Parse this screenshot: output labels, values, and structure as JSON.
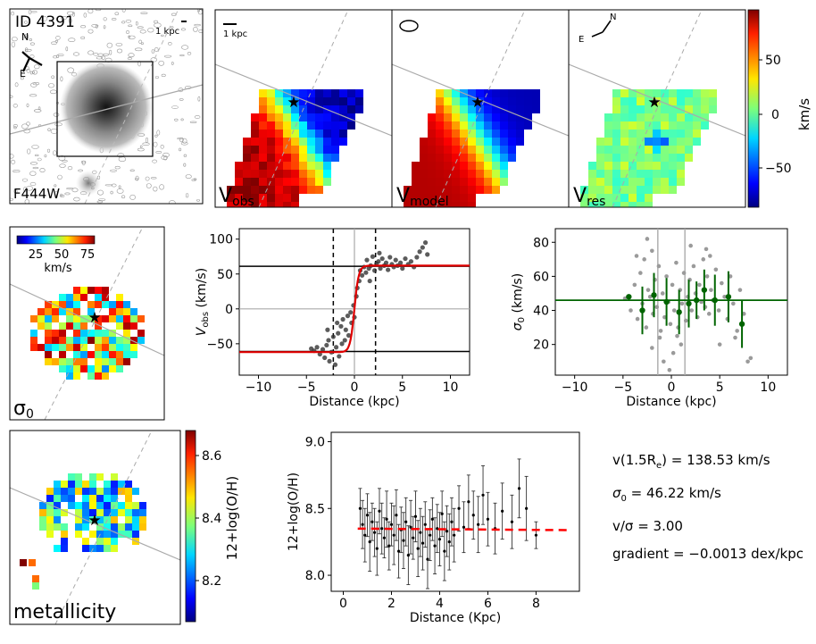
{
  "figure": {
    "id_label": "ID 4391",
    "scale_1kpc": "1 kpc",
    "filter_label": "F444W",
    "compass_n": "N",
    "compass_e": "E",
    "panel_vobs_main": "V",
    "panel_vobs_sub": "obs",
    "panel_vmodel_main": "V",
    "panel_vmodel_sub": "model",
    "panel_vres_main": "V",
    "panel_vres_sub": "res",
    "velocity_colorbar_label": "km/s",
    "velocity_colorbar_ticks": [
      "50",
      "0",
      "−50"
    ],
    "sigma_colorbar_ticks": [
      "25",
      "50",
      "75"
    ],
    "sigma_colorbar_unit": "km/s",
    "sigma_map_label": "σ",
    "sigma_map_sub": "0",
    "metal_map_label": "metallicity",
    "metal_colorbar_label": "12+log(O/H)",
    "metal_colorbar_ticks": [
      "8.6",
      "8.4",
      "8.2"
    ]
  },
  "stats": {
    "vrot": "v(1.5R",
    "vrot_sub": "e",
    "vrot_val": ") = 138.53 km/s",
    "sigma": "σ",
    "sigma_sub": "0",
    "sigma_val": " = 46.22 km/s",
    "vsig": "v/σ = 3.00",
    "gradient": "gradient = −0.0013 dex/kpc"
  },
  "colors": {
    "model_curve": "#e00000",
    "sigma_line": "#006400",
    "metal_fit": "#ff0000",
    "points_dark": "#333333",
    "points_grey": "#9a9a9a"
  },
  "chart_data": [
    {
      "type": "scatter",
      "name": "rotation-curve",
      "xlabel": "Distance (kpc)",
      "ylabel": "V",
      "ylabel_sub": "obs",
      "ylabel_unit": " (km/s)",
      "xlim": [
        -12,
        12
      ],
      "ylim": [
        -95,
        115
      ],
      "xticks": [
        -10,
        -5,
        0,
        5,
        10
      ],
      "yticks": [
        -50,
        0,
        50,
        100
      ],
      "vflat": 61,
      "r_dashed": [
        -2.2,
        2.2
      ],
      "points": [
        [
          -4.5,
          -57
        ],
        [
          -4.2,
          -60
        ],
        [
          -3.9,
          -55
        ],
        [
          -3.6,
          -65
        ],
        [
          -3.3,
          -58
        ],
        [
          -3.1,
          -70
        ],
        [
          -2.9,
          -52
        ],
        [
          -2.7,
          -45
        ],
        [
          -2.6,
          -75
        ],
        [
          -2.4,
          -62
        ],
        [
          -2.2,
          -40
        ],
        [
          -2.0,
          -80
        ],
        [
          -1.9,
          -55
        ],
        [
          -1.7,
          -35
        ],
        [
          -1.6,
          -68
        ],
        [
          -1.4,
          -25
        ],
        [
          -1.3,
          -50
        ],
        [
          -1.2,
          -15
        ],
        [
          -1.0,
          -45
        ],
        [
          -0.9,
          -30
        ],
        [
          -0.7,
          -10
        ],
        [
          -0.6,
          -38
        ],
        [
          -0.4,
          -5
        ],
        [
          -0.3,
          -20
        ],
        [
          -0.1,
          5
        ],
        [
          0.0,
          -12
        ],
        [
          0.2,
          18
        ],
        [
          0.3,
          30
        ],
        [
          0.5,
          40
        ],
        [
          0.6,
          55
        ],
        [
          0.8,
          48
        ],
        [
          1.0,
          60
        ],
        [
          1.2,
          52
        ],
        [
          1.3,
          70
        ],
        [
          1.5,
          58
        ],
        [
          1.7,
          62
        ],
        [
          1.9,
          75
        ],
        [
          2.1,
          55
        ],
        [
          2.3,
          65
        ],
        [
          2.5,
          68
        ],
        [
          2.7,
          58
        ],
        [
          2.9,
          72
        ],
        [
          3.1,
          62
        ],
        [
          3.3,
          66
        ],
        [
          3.5,
          56
        ],
        [
          3.7,
          74
        ],
        [
          3.9,
          64
        ],
        [
          4.1,
          60
        ],
        [
          4.3,
          70
        ],
        [
          4.5,
          62
        ],
        [
          4.8,
          66
        ],
        [
          5.0,
          58
        ],
        [
          5.3,
          72
        ],
        [
          5.6,
          64
        ],
        [
          5.9,
          68
        ],
        [
          6.2,
          60
        ],
        [
          6.5,
          74
        ],
        [
          6.8,
          82
        ],
        [
          7.1,
          88
        ],
        [
          7.4,
          95
        ],
        [
          7.6,
          78
        ],
        [
          -1.8,
          -20
        ],
        [
          -2.8,
          -30
        ],
        [
          1.6,
          40
        ],
        [
          2.6,
          80
        ]
      ],
      "model": {
        "vflat": 62,
        "rt": 0.45
      }
    },
    {
      "type": "scatter",
      "name": "dispersion-profile",
      "xlabel": "Distance (kpc)",
      "ylabel": "σ",
      "ylabel_sub": "0",
      "ylabel_unit": " (km/s)",
      "xlim": [
        -12,
        12
      ],
      "ylim": [
        2,
        88
      ],
      "xticks": [
        -10,
        -5,
        0,
        5,
        10
      ],
      "yticks": [
        20,
        40,
        60,
        80
      ],
      "sigma0": 46,
      "r_vlines": [
        -1.4,
        1.4
      ],
      "binned": [
        [
          -4.4,
          48,
          0
        ],
        [
          -3.0,
          40,
          14
        ],
        [
          -1.8,
          49,
          13
        ],
        [
          -0.5,
          45,
          14
        ],
        [
          0.8,
          39,
          13
        ],
        [
          1.8,
          44,
          14
        ],
        [
          2.6,
          46,
          11
        ],
        [
          3.4,
          52,
          12
        ],
        [
          4.5,
          46,
          15
        ],
        [
          5.9,
          48,
          15
        ],
        [
          7.3,
          32,
          14
        ]
      ],
      "points": [
        [
          -4.8,
          47
        ],
        [
          -4.2,
          40
        ],
        [
          -3.8,
          55
        ],
        [
          -3.5,
          35
        ],
        [
          -3.2,
          62
        ],
        [
          -3.0,
          44
        ],
        [
          -2.8,
          70
        ],
        [
          -2.6,
          30
        ],
        [
          -2.4,
          52
        ],
        [
          -2.2,
          48
        ],
        [
          -2.0,
          75
        ],
        [
          -1.9,
          38
        ],
        [
          -1.7,
          58
        ],
        [
          -1.5,
          42
        ],
        [
          -1.3,
          66
        ],
        [
          -1.1,
          28
        ],
        [
          -0.9,
          50
        ],
        [
          -0.7,
          36
        ],
        [
          -0.5,
          60
        ],
        [
          -0.3,
          45
        ],
        [
          -0.1,
          32
        ],
        [
          0.1,
          55
        ],
        [
          0.3,
          40
        ],
        [
          0.5,
          68
        ],
        [
          0.7,
          30
        ],
        [
          0.9,
          52
        ],
        [
          1.1,
          44
        ],
        [
          1.3,
          62
        ],
        [
          1.5,
          34
        ],
        [
          1.7,
          48
        ],
        [
          1.9,
          58
        ],
        [
          2.1,
          40
        ],
        [
          2.3,
          66
        ],
        [
          2.5,
          50
        ],
        [
          2.7,
          36
        ],
        [
          2.9,
          55
        ],
        [
          3.1,
          45
        ],
        [
          3.3,
          70
        ],
        [
          3.5,
          42
        ],
        [
          3.7,
          60
        ],
        [
          3.9,
          38
        ],
        [
          4.1,
          52
        ],
        [
          4.3,
          46
        ],
        [
          4.6,
          64
        ],
        [
          4.9,
          40
        ],
        [
          5.2,
          56
        ],
        [
          5.5,
          48
        ],
        [
          5.8,
          35
        ],
        [
          6.1,
          60
        ],
        [
          6.4,
          44
        ],
        [
          6.8,
          28
        ],
        [
          7.1,
          52
        ],
        [
          7.5,
          38
        ],
        [
          7.9,
          10
        ],
        [
          8.2,
          12
        ],
        [
          -2.5,
          82
        ],
        [
          -2.0,
          18
        ],
        [
          -0.8,
          10
        ],
        [
          0.2,
          15
        ],
        [
          1.0,
          20
        ],
        [
          3.6,
          76
        ],
        [
          4.0,
          72
        ],
        [
          -1.2,
          24
        ],
        [
          0.6,
          25
        ],
        [
          2.0,
          78
        ],
        [
          -3.6,
          72
        ],
        [
          -0.2,
          5
        ],
        [
          5.0,
          20
        ],
        [
          6.6,
          24
        ]
      ]
    },
    {
      "type": "scatter",
      "name": "metallicity-profile",
      "xlabel": "Distance (Kpc)",
      "ylabel": "12+log(O/H)",
      "xlim": [
        -0.5,
        9.8
      ],
      "ylim": [
        7.88,
        9.07
      ],
      "xticks": [
        0,
        2,
        4,
        6,
        8
      ],
      "yticks": [
        8.0,
        8.5,
        9.0
      ],
      "fit": {
        "intercept": 8.35,
        "slope": -0.0013,
        "x0": 0.6,
        "x1": 9.3
      },
      "points": [
        [
          0.7,
          8.5,
          0.15
        ],
        [
          0.8,
          8.38,
          0.18
        ],
        [
          0.9,
          8.3,
          0.2
        ],
        [
          1.0,
          8.45,
          0.16
        ],
        [
          1.1,
          8.25,
          0.22
        ],
        [
          1.2,
          8.4,
          0.14
        ],
        [
          1.3,
          8.32,
          0.18
        ],
        [
          1.4,
          8.2,
          0.2
        ],
        [
          1.5,
          8.48,
          0.17
        ],
        [
          1.6,
          8.35,
          0.19
        ],
        [
          1.7,
          8.28,
          0.15
        ],
        [
          1.8,
          8.42,
          0.21
        ],
        [
          1.9,
          8.22,
          0.18
        ],
        [
          2.0,
          8.38,
          0.16
        ],
        [
          2.1,
          8.3,
          0.22
        ],
        [
          2.2,
          8.45,
          0.19
        ],
        [
          2.3,
          8.18,
          0.2
        ],
        [
          2.4,
          8.34,
          0.17
        ],
        [
          2.5,
          8.26,
          0.21
        ],
        [
          2.6,
          8.4,
          0.18
        ],
        [
          2.7,
          8.15,
          0.22
        ],
        [
          2.8,
          8.36,
          0.2
        ],
        [
          2.9,
          8.28,
          0.16
        ],
        [
          3.0,
          8.44,
          0.19
        ],
        [
          3.1,
          8.2,
          0.21
        ],
        [
          3.2,
          8.32,
          0.18
        ],
        [
          3.3,
          8.24,
          0.2
        ],
        [
          3.4,
          8.38,
          0.17
        ],
        [
          3.5,
          8.12,
          0.22
        ],
        [
          3.6,
          8.3,
          0.19
        ],
        [
          3.7,
          8.42,
          0.16
        ],
        [
          3.8,
          8.22,
          0.21
        ],
        [
          3.9,
          8.35,
          0.18
        ],
        [
          4.0,
          8.27,
          0.2
        ],
        [
          4.1,
          8.46,
          0.17
        ],
        [
          4.2,
          8.18,
          0.22
        ],
        [
          4.3,
          8.33,
          0.19
        ],
        [
          4.4,
          8.25,
          0.21
        ],
        [
          4.5,
          8.4,
          0.18
        ],
        [
          4.6,
          8.3,
          0.2
        ],
        [
          4.8,
          8.5,
          0.17
        ],
        [
          5.0,
          8.36,
          0.19
        ],
        [
          5.2,
          8.55,
          0.2
        ],
        [
          5.4,
          8.45,
          0.18
        ],
        [
          5.6,
          8.38,
          0.21
        ],
        [
          5.8,
          8.6,
          0.22
        ],
        [
          6.0,
          8.42,
          0.2
        ],
        [
          6.3,
          8.35,
          0.19
        ],
        [
          6.6,
          8.48,
          0.21
        ],
        [
          7.0,
          8.4,
          0.2
        ],
        [
          7.3,
          8.65,
          0.22
        ],
        [
          7.6,
          8.5,
          0.24
        ],
        [
          8.0,
          8.3,
          0.1
        ]
      ]
    }
  ]
}
